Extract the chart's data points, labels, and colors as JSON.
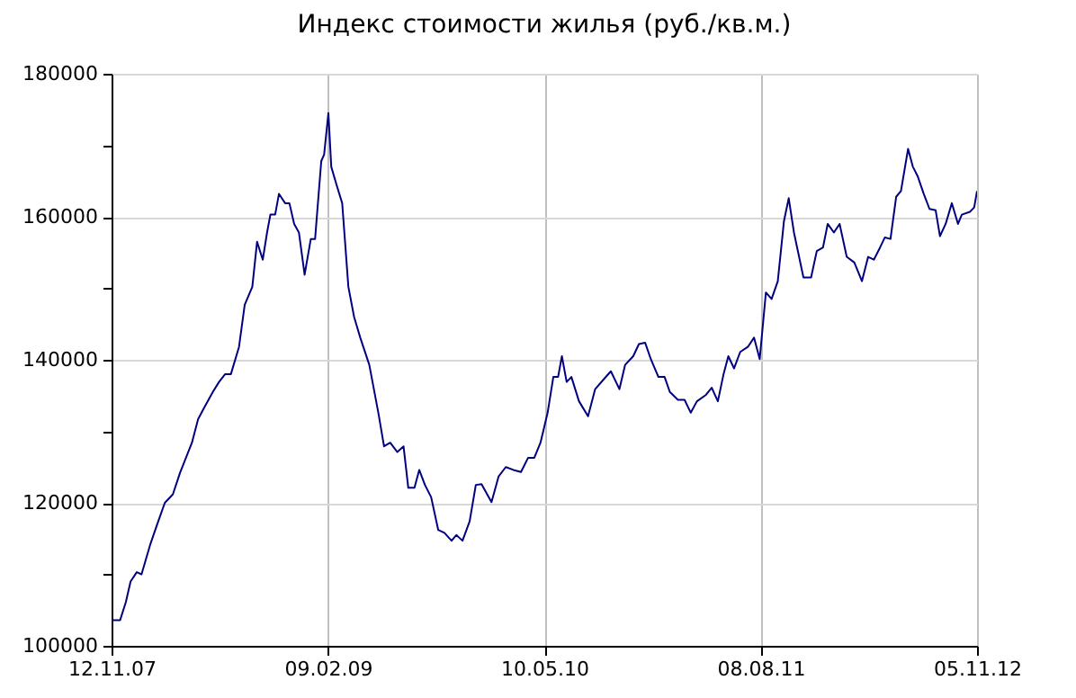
{
  "chart_data": {
    "type": "line",
    "title": "Индекс стоимости жилья (руб./кв.м.)",
    "x": [
      "2007-11-12",
      "2007-11-30",
      "2007-12-12",
      "2007-12-22",
      "2008-01-04",
      "2008-01-14",
      "2008-02-01",
      "2008-02-16",
      "2008-03-03",
      "2008-03-20",
      "2008-04-04",
      "2008-04-29",
      "2008-05-12",
      "2008-05-24",
      "2008-06-12",
      "2008-06-25",
      "2008-07-08",
      "2008-07-20",
      "2008-08-06",
      "2008-08-18",
      "2008-09-03",
      "2008-09-13",
      "2008-09-25",
      "2008-10-04",
      "2008-10-11",
      "2008-10-21",
      "2008-10-29",
      "2008-11-11",
      "2008-11-20",
      "2008-11-30",
      "2008-12-10",
      "2008-12-22",
      "2009-01-04",
      "2009-01-13",
      "2009-01-26",
      "2009-02-01",
      "2009-02-10",
      "2009-02-16",
      "2009-02-27",
      "2009-03-11",
      "2009-03-24",
      "2009-04-05",
      "2009-04-18",
      "2009-05-07",
      "2009-05-26",
      "2009-06-07",
      "2009-06-20",
      "2009-07-05",
      "2009-07-18",
      "2009-07-28",
      "2009-08-10",
      "2009-08-20",
      "2009-09-01",
      "2009-09-14",
      "2009-09-29",
      "2009-10-12",
      "2009-10-27",
      "2009-11-06",
      "2009-11-19",
      "2009-12-04",
      "2009-12-17",
      "2009-12-29",
      "2010-01-19",
      "2010-02-03",
      "2010-02-18",
      "2010-03-06",
      "2010-03-22",
      "2010-04-06",
      "2010-04-19",
      "2010-05-02",
      "2010-05-17",
      "2010-05-29",
      "2010-06-08",
      "2010-06-16",
      "2010-06-26",
      "2010-07-06",
      "2010-07-22",
      "2010-08-10",
      "2010-08-25",
      "2010-09-11",
      "2010-09-27",
      "2010-10-15",
      "2010-10-27",
      "2010-11-13",
      "2010-11-25",
      "2010-12-08",
      "2010-12-20",
      "2011-01-05",
      "2011-01-18",
      "2011-01-29",
      "2011-02-15",
      "2011-03-01",
      "2011-03-14",
      "2011-03-27",
      "2011-04-15",
      "2011-04-27",
      "2011-05-10",
      "2011-05-22",
      "2011-06-01",
      "2011-06-13",
      "2011-06-26",
      "2011-07-12",
      "2011-07-25",
      "2011-08-06",
      "2011-08-19",
      "2011-08-31",
      "2011-09-13",
      "2011-09-26",
      "2011-10-06",
      "2011-10-17",
      "2011-11-06",
      "2011-11-22",
      "2011-12-04",
      "2011-12-17",
      "2011-12-27",
      "2012-01-09",
      "2012-01-21",
      "2012-02-05",
      "2012-02-21",
      "2012-03-08",
      "2012-03-21",
      "2012-04-02",
      "2012-04-15",
      "2012-04-25",
      "2012-05-07",
      "2012-05-19",
      "2012-05-29",
      "2012-06-13",
      "2012-06-23",
      "2012-07-03",
      "2012-07-16",
      "2012-07-28",
      "2012-08-10",
      "2012-08-19",
      "2012-08-31",
      "2012-09-13",
      "2012-09-26",
      "2012-10-04",
      "2012-10-21",
      "2012-10-30",
      "2012-11-05"
    ],
    "series": [
      {
        "color": "#000080",
        "values": [
          103600,
          103600,
          106100,
          109000,
          110300,
          110000,
          114100,
          117000,
          120000,
          121200,
          124200,
          128400,
          131700,
          133200,
          135500,
          136900,
          138000,
          138000,
          141800,
          147700,
          150200,
          156500,
          154000,
          157800,
          160300,
          160300,
          163200,
          161900,
          161900,
          159000,
          157800,
          151900,
          156900,
          156900,
          167800,
          168700,
          174500,
          167000,
          164500,
          161900,
          150200,
          146000,
          143100,
          139300,
          132600,
          127900,
          128400,
          127100,
          127900,
          122100,
          122100,
          124600,
          122500,
          120800,
          116200,
          115800,
          114700,
          115500,
          114700,
          117400,
          122500,
          122600,
          120100,
          123700,
          125000,
          124600,
          124300,
          126300,
          126300,
          128400,
          132600,
          137600,
          137600,
          140500,
          136900,
          137600,
          134200,
          132100,
          135900,
          137200,
          138400,
          135900,
          139300,
          140500,
          142200,
          142400,
          140100,
          137600,
          137600,
          135500,
          134400,
          134400,
          132600,
          134200,
          135100,
          136100,
          134200,
          138000,
          140500,
          138800,
          141100,
          141800,
          143100,
          140100,
          149400,
          148500,
          151000,
          159400,
          162600,
          157800,
          151500,
          151500,
          155200,
          155700,
          159000,
          157800,
          159000,
          154400,
          153600,
          151000,
          154400,
          154000,
          155700,
          157100,
          156900,
          162800,
          163600,
          169500,
          167000,
          165700,
          163200,
          161100,
          160900,
          157300,
          159000,
          161900,
          159000,
          160300,
          160700,
          161300,
          163600
        ]
      }
    ],
    "xlim": [
      "2007-11-12",
      "2012-11-05"
    ],
    "xticks": [
      {
        "value": "2007-11-12",
        "label": "12.11.07"
      },
      {
        "value": "2009-02-09",
        "label": "09.02.09"
      },
      {
        "value": "2010-05-10",
        "label": "10.05.10"
      },
      {
        "value": "2011-08-08",
        "label": "08.08.11"
      },
      {
        "value": "2012-11-05",
        "label": "05.11.12"
      }
    ],
    "ylim": [
      100000,
      180000
    ],
    "yticks": [
      100000,
      {
        "value": 110000,
        "label": null
      },
      120000,
      {
        "value": 130000,
        "label": null
      },
      140000,
      {
        "value": 150000,
        "label": null
      },
      160000,
      {
        "value": 170000,
        "label": null
      },
      180000
    ],
    "grid": true
  }
}
